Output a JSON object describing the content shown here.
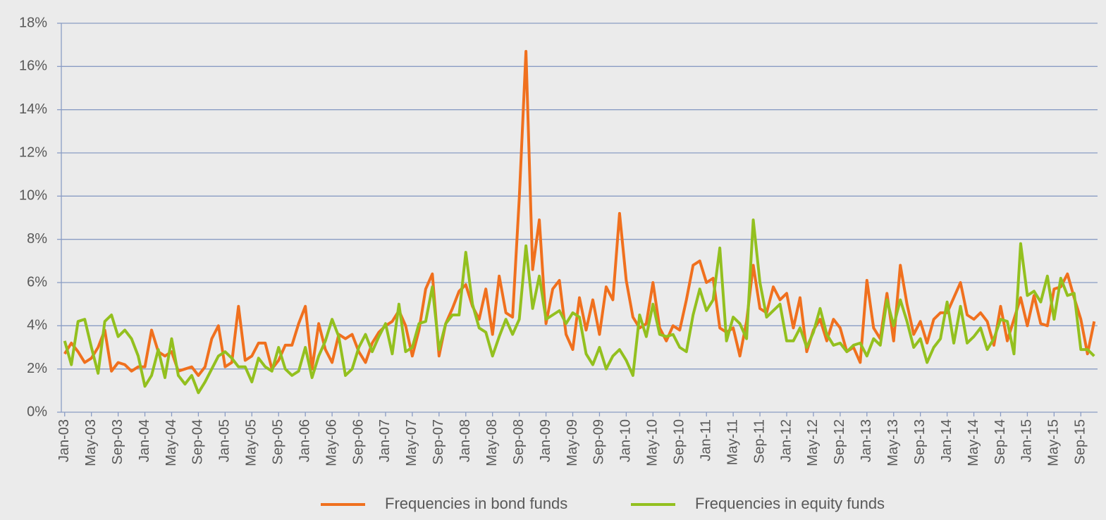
{
  "chart_data": {
    "type": "line",
    "categories": [
      "Jan-03",
      null,
      null,
      null,
      "May-03",
      null,
      null,
      null,
      "Sep-03",
      null,
      null,
      null,
      "Jan-04",
      null,
      null,
      null,
      "May-04",
      null,
      null,
      null,
      "Sep-04",
      null,
      null,
      null,
      "Jan-05",
      null,
      null,
      null,
      "May-05",
      null,
      null,
      null,
      "Sep-05",
      null,
      null,
      null,
      "Jan-06",
      null,
      null,
      null,
      "May-06",
      null,
      null,
      null,
      "Sep-06",
      null,
      null,
      null,
      "Jan-07",
      null,
      null,
      null,
      "May-07",
      null,
      null,
      null,
      "Sep-07",
      null,
      null,
      null,
      "Jan-08",
      null,
      null,
      null,
      "May-08",
      null,
      null,
      null,
      "Sep-08",
      null,
      null,
      null,
      "Jan-09",
      null,
      null,
      null,
      "May-09",
      null,
      null,
      null,
      "Sep-09",
      null,
      null,
      null,
      "Jan-10",
      null,
      null,
      null,
      "May-10",
      null,
      null,
      null,
      "Sep-10",
      null,
      null,
      null,
      "Jan-11",
      null,
      null,
      null,
      "May-11",
      null,
      null,
      null,
      "Sep-11",
      null,
      null,
      null,
      "Jan-12",
      null,
      null,
      null,
      "May-12",
      null,
      null,
      null,
      "Sep-12",
      null,
      null,
      null,
      "Jan-13",
      null,
      null,
      null,
      "May-13",
      null,
      null,
      null,
      "Sep-13",
      null,
      null,
      null,
      "Jan-14",
      null,
      null,
      null,
      "May-14",
      null,
      null,
      null,
      "Sep-14",
      null,
      null,
      null,
      "Jan-15",
      null,
      null,
      null,
      "May-15",
      null,
      null,
      null,
      "Sep-15",
      null,
      null
    ],
    "series": [
      {
        "name": "Frequencies in bond funds",
        "color": "#f0701e",
        "values": [
          2.7,
          3.2,
          2.8,
          2.3,
          2.5,
          3.0,
          3.8,
          1.9,
          2.3,
          2.2,
          1.9,
          2.1,
          2.1,
          3.8,
          2.8,
          2.6,
          2.8,
          1.9,
          2.0,
          2.1,
          1.7,
          2.1,
          3.4,
          4.0,
          2.1,
          2.3,
          4.9,
          2.4,
          2.6,
          3.2,
          3.2,
          2.0,
          2.4,
          3.1,
          3.1,
          4.1,
          4.9,
          2.0,
          4.1,
          2.9,
          2.3,
          3.6,
          3.4,
          3.6,
          2.8,
          2.3,
          3.2,
          3.7,
          4.0,
          4.2,
          4.7,
          4.0,
          2.6,
          3.8,
          5.7,
          6.4,
          2.6,
          4.1,
          4.8,
          5.6,
          5.9,
          4.9,
          4.3,
          5.7,
          3.6,
          6.3,
          4.6,
          4.4,
          9.9,
          16.7,
          6.6,
          8.9,
          4.1,
          5.7,
          6.1,
          3.6,
          2.9,
          5.3,
          3.8,
          5.2,
          3.6,
          5.8,
          5.2,
          9.2,
          6.1,
          4.4,
          3.9,
          4.1,
          6.0,
          3.9,
          3.3,
          4.0,
          3.8,
          5.2,
          6.8,
          7.0,
          6.0,
          6.2,
          3.9,
          3.7,
          3.9,
          2.6,
          4.2,
          6.8,
          4.8,
          4.6,
          5.8,
          5.2,
          5.5,
          3.9,
          5.3,
          2.8,
          3.8,
          4.3,
          3.3,
          4.3,
          3.9,
          2.8,
          3.0,
          2.3,
          6.1,
          3.9,
          3.4,
          5.5,
          3.3,
          6.8,
          5.0,
          3.6,
          4.2,
          3.2,
          4.3,
          4.6,
          4.6,
          5.3,
          6.0,
          4.5,
          4.3,
          4.6,
          4.2,
          3.1,
          4.9,
          3.3,
          4.3,
          5.3,
          4.0,
          5.4,
          4.1,
          4.0,
          5.7,
          5.8,
          6.4,
          5.3,
          4.3,
          2.7,
          4.2
        ]
      },
      {
        "name": "Frequencies in equity funds",
        "color": "#93c01f",
        "values": [
          3.3,
          2.2,
          4.2,
          4.3,
          3.0,
          1.8,
          4.2,
          4.5,
          3.5,
          3.8,
          3.4,
          2.6,
          1.2,
          1.7,
          2.9,
          1.6,
          3.4,
          1.7,
          1.3,
          1.7,
          0.9,
          1.4,
          2.0,
          2.6,
          2.8,
          2.5,
          2.1,
          2.1,
          1.4,
          2.5,
          2.1,
          1.9,
          3.0,
          2.0,
          1.7,
          1.9,
          3.0,
          1.6,
          2.6,
          3.3,
          4.3,
          3.5,
          1.7,
          2.0,
          3.0,
          3.6,
          2.8,
          3.5,
          4.1,
          2.7,
          5.0,
          2.8,
          3.0,
          4.1,
          4.2,
          5.8,
          2.9,
          4.1,
          4.5,
          4.5,
          7.4,
          5.0,
          3.9,
          3.7,
          2.6,
          3.5,
          4.3,
          3.6,
          4.3,
          7.7,
          4.8,
          6.3,
          4.3,
          4.5,
          4.7,
          4.1,
          4.6,
          4.4,
          2.7,
          2.2,
          3.0,
          2.0,
          2.6,
          2.9,
          2.4,
          1.7,
          4.5,
          3.5,
          5.0,
          3.6,
          3.5,
          3.6,
          3.0,
          2.8,
          4.5,
          5.7,
          4.7,
          5.2,
          7.6,
          3.3,
          4.4,
          4.1,
          3.4,
          8.9,
          6.0,
          4.4,
          4.7,
          5.0,
          3.3,
          3.3,
          3.9,
          3.0,
          3.7,
          4.8,
          3.6,
          3.1,
          3.2,
          2.8,
          3.1,
          3.2,
          2.6,
          3.4,
          3.1,
          5.2,
          4.0,
          5.2,
          4.2,
          3.0,
          3.4,
          2.3,
          3.0,
          3.4,
          5.1,
          3.2,
          4.9,
          3.2,
          3.5,
          3.9,
          2.9,
          3.4,
          4.3,
          4.2,
          2.7,
          7.8,
          5.4,
          5.6,
          5.1,
          6.3,
          4.3,
          6.2,
          5.4,
          5.5,
          2.9,
          2.9,
          2.6
        ]
      }
    ],
    "ylim": [
      0,
      18
    ],
    "yticks": [
      {
        "value": 0,
        "label": "0%"
      },
      {
        "value": 2,
        "label": "2%"
      },
      {
        "value": 4,
        "label": "4%"
      },
      {
        "value": 6,
        "label": "6%"
      },
      {
        "value": 8,
        "label": "8%"
      },
      {
        "value": 10,
        "label": "10%"
      },
      {
        "value": 12,
        "label": "12%"
      },
      {
        "value": 14,
        "label": "14%"
      },
      {
        "value": 16,
        "label": "16%"
      },
      {
        "value": 18,
        "label": "18%"
      }
    ],
    "grid": true,
    "legend": "bottom"
  }
}
